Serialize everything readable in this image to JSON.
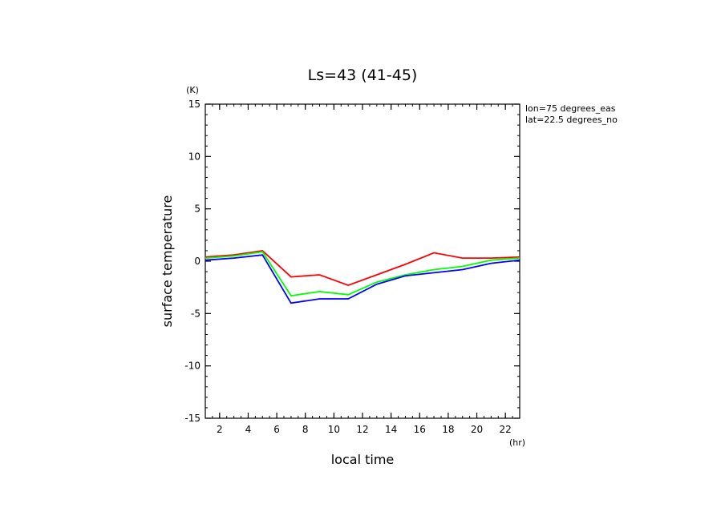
{
  "chart_data": {
    "type": "line",
    "title": "Ls=43 (41-45)",
    "xlabel": "local time",
    "ylabel": "surface temperature",
    "xunit": "(hr)",
    "yunit": "(K)",
    "annotations": [
      "lon=75 degrees_eas",
      "lat=22.5 degrees_no"
    ],
    "xlim": [
      1,
      23
    ],
    "ylim": [
      -15,
      15
    ],
    "xticks": [
      2,
      4,
      6,
      8,
      10,
      12,
      14,
      16,
      18,
      20,
      22
    ],
    "yticks": [
      -15,
      -10,
      -5,
      0,
      5,
      10,
      15
    ],
    "grid": false,
    "x": [
      1,
      3,
      5,
      7,
      9,
      11,
      13,
      15,
      17,
      19,
      21,
      23
    ],
    "series": [
      {
        "color": "#ff0000",
        "values": [
          0.4,
          0.6,
          1.0,
          -1.5,
          -1.3,
          -2.3,
          -1.3,
          -0.3,
          0.8,
          0.3,
          0.3,
          0.4
        ]
      },
      {
        "color": "#00ff00",
        "values": [
          0.3,
          0.5,
          0.9,
          -3.3,
          -2.9,
          -3.2,
          -2.0,
          -1.3,
          -0.8,
          -0.5,
          0.1,
          0.3
        ]
      },
      {
        "color": "#0000ff",
        "values": [
          0.1,
          0.3,
          0.6,
          -4.0,
          -3.6,
          -3.6,
          -2.2,
          -1.4,
          -1.1,
          -0.8,
          -0.2,
          0.1
        ]
      }
    ]
  }
}
